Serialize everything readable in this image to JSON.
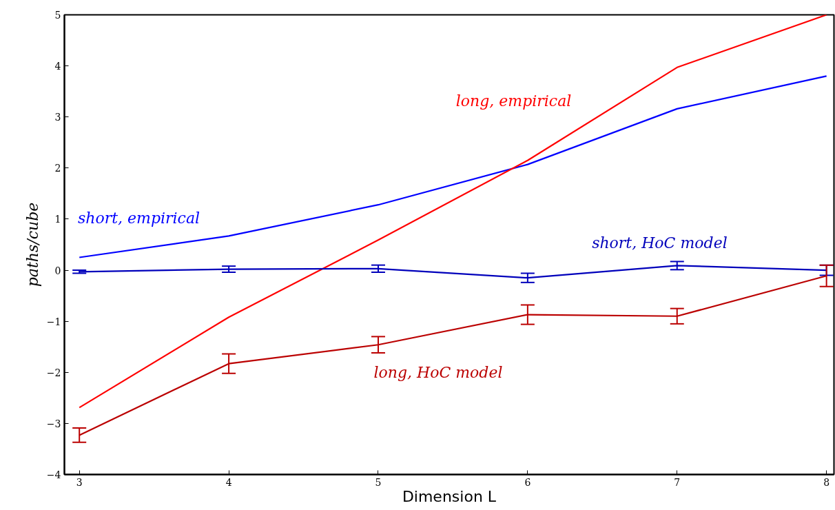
{
  "chart_data": {
    "type": "line",
    "xlabel": "Dimension L",
    "ylabel": "paths/cube",
    "x": [
      3,
      4,
      5,
      6,
      7,
      8
    ],
    "series": [
      {
        "name": "short, empirical",
        "color": "#0000ff",
        "values": [
          0.25,
          0.67,
          1.28,
          2.07,
          3.16,
          3.8
        ]
      },
      {
        "name": "long, empirical",
        "color": "#ff0000",
        "values": [
          -2.69,
          -0.92,
          0.59,
          2.15,
          3.97,
          5.0
        ]
      },
      {
        "name": "short, HoC model",
        "color": "#0000bb",
        "values": [
          -0.03,
          0.02,
          0.03,
          -0.15,
          0.09,
          0.0
        ],
        "errors": [
          0.03,
          0.06,
          0.07,
          0.09,
          0.08,
          0.1
        ]
      },
      {
        "name": "long, HoC model",
        "color": "#bb0000",
        "values": [
          -3.23,
          -1.83,
          -1.46,
          -0.87,
          -0.9,
          -0.11
        ],
        "errors": [
          0.14,
          0.19,
          0.16,
          0.19,
          0.15,
          0.21
        ]
      }
    ],
    "xlim": [
      2.9,
      8.05
    ],
    "ylim": [
      -4,
      5
    ],
    "xticks": [
      3,
      4,
      5,
      6,
      7,
      8
    ],
    "yticks": [
      -4,
      -3,
      -2,
      -1,
      0,
      1,
      2,
      3,
      4,
      5
    ],
    "grid": false,
    "marker": "none",
    "line_style": "solid"
  }
}
